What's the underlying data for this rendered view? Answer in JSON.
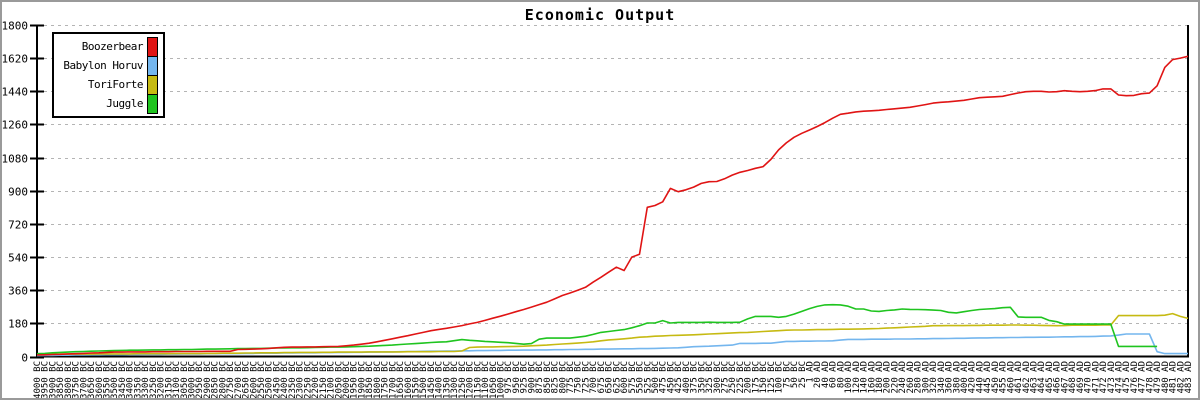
{
  "chart_data": {
    "type": "line",
    "title": "Economic Output",
    "xlabel": "",
    "ylabel": "",
    "grid": "horizontal-dashed",
    "legend_position": "top-left",
    "y_axis": {
      "min": 0,
      "max": 1800,
      "tick_step": 180,
      "tick_labels": [
        "0",
        "180",
        "360",
        "540",
        "720",
        "900",
        "1080",
        "1260",
        "1440",
        "1620",
        "1800"
      ]
    },
    "x_labels": [
      "4000 BC",
      "3950 BC",
      "3900 BC",
      "3850 BC",
      "3800 BC",
      "3750 BC",
      "3700 BC",
      "3650 BC",
      "3600 BC",
      "3550 BC",
      "3500 BC",
      "3450 BC",
      "3400 BC",
      "3350 BC",
      "3300 BC",
      "3250 BC",
      "3200 BC",
      "3150 BC",
      "3100 BC",
      "3050 BC",
      "3000 BC",
      "2950 BC",
      "2900 BC",
      "2850 BC",
      "2800 BC",
      "2750 BC",
      "2700 BC",
      "2650 BC",
      "2600 BC",
      "2550 BC",
      "2500 BC",
      "2450 BC",
      "2400 BC",
      "2350 BC",
      "2300 BC",
      "2250 BC",
      "2200 BC",
      "2150 BC",
      "2100 BC",
      "2050 BC",
      "2000 BC",
      "1950 BC",
      "1900 BC",
      "1850 BC",
      "1800 BC",
      "1750 BC",
      "1700 BC",
      "1650 BC",
      "1600 BC",
      "1550 BC",
      "1500 BC",
      "1450 BC",
      "1400 BC",
      "1350 BC",
      "1300 BC",
      "1250 BC",
      "1200 BC",
      "1150 BC",
      "1100 BC",
      "1050 BC",
      "1000 BC",
      "975 BC",
      "950 BC",
      "925 BC",
      "900 BC",
      "875 BC",
      "850 BC",
      "825 BC",
      "800 BC",
      "775 BC",
      "750 BC",
      "725 BC",
      "700 BC",
      "675 BC",
      "650 BC",
      "625 BC",
      "600 BC",
      "575 BC",
      "550 BC",
      "525 BC",
      "500 BC",
      "475 BC",
      "450 BC",
      "425 BC",
      "400 BC",
      "375 BC",
      "350 BC",
      "325 BC",
      "300 BC",
      "275 BC",
      "250 BC",
      "225 BC",
      "200 BC",
      "175 BC",
      "150 BC",
      "125 BC",
      "100 BC",
      "75 BC",
      "50 BC",
      "25 BC",
      "1 AD",
      "20 AD",
      "40 AD",
      "60 AD",
      "80 AD",
      "100 AD",
      "120 AD",
      "140 AD",
      "160 AD",
      "180 AD",
      "200 AD",
      "220 AD",
      "240 AD",
      "260 AD",
      "280 AD",
      "300 AD",
      "320 AD",
      "340 AD",
      "360 AD",
      "380 AD",
      "400 AD",
      "420 AD",
      "440 AD",
      "445 AD",
      "450 AD",
      "455 AD",
      "460 AD",
      "461 AD",
      "462 AD",
      "463 AD",
      "464 AD",
      "465 AD",
      "466 AD",
      "467 AD",
      "468 AD",
      "469 AD",
      "470 AD",
      "471 AD",
      "472 AD",
      "473 AD",
      "474 AD",
      "475 AD",
      "476 AD",
      "477 AD",
      "478 AD",
      "479 AD",
      "480 AD",
      "481 AD",
      "482 AD",
      "483 AD"
    ],
    "series": [
      {
        "name": "Babylon Horuv",
        "color": "#74b6ee",
        "values": [
          5,
          6,
          6,
          7,
          7,
          8,
          8,
          9,
          9,
          10,
          10,
          10,
          11,
          11,
          12,
          12,
          12,
          13,
          13,
          14,
          14,
          14,
          15,
          15,
          16,
          16,
          16,
          17,
          17,
          18,
          18,
          18,
          19,
          19,
          20,
          20,
          20,
          21,
          21,
          22,
          22,
          23,
          23,
          24,
          24,
          25,
          25,
          26,
          27,
          27,
          28,
          29,
          29,
          30,
          30,
          31,
          31,
          32,
          32,
          33,
          33,
          34,
          34,
          35,
          35,
          36,
          36,
          37,
          37,
          38,
          38,
          39,
          39,
          40,
          40,
          41,
          42,
          42,
          43,
          43,
          44,
          45,
          46,
          47,
          50,
          53,
          55,
          56,
          58,
          60,
          62,
          71,
          71,
          71,
          72,
          72,
          77,
          82,
          82,
          83,
          83,
          84,
          84,
          85,
          89,
          93,
          93,
          93,
          94,
          94,
          94,
          95,
          95,
          95,
          96,
          96,
          97,
          97,
          98,
          99,
          99,
          100,
          101,
          101,
          102,
          102,
          103,
          103,
          104,
          104,
          105,
          105,
          106,
          107,
          107,
          108,
          108,
          109,
          111,
          112,
          116,
          122,
          122,
          122,
          122,
          26,
          16,
          16,
          16,
          16
        ]
      },
      {
        "name": "ToriForte",
        "color": "#c6ba12",
        "values": [
          12,
          12,
          12,
          13,
          13,
          13,
          13,
          13,
          14,
          14,
          14,
          14,
          14,
          15,
          15,
          15,
          15,
          15,
          16,
          16,
          16,
          16,
          17,
          17,
          18,
          18,
          18,
          19,
          19,
          20,
          20,
          20,
          21,
          21,
          22,
          22,
          22,
          23,
          23,
          24,
          24,
          24,
          24,
          25,
          25,
          25,
          25,
          25,
          26,
          26,
          26,
          26,
          27,
          27,
          27,
          30,
          49,
          51,
          52,
          52,
          53,
          54,
          55,
          56,
          58,
          60,
          62,
          65,
          68,
          70,
          73,
          76,
          80,
          85,
          90,
          93,
          96,
          100,
          105,
          107,
          110,
          112,
          114,
          115,
          116,
          118,
          120,
          122,
          124,
          126,
          128,
          130,
          131,
          133,
          136,
          138,
          140,
          143,
          144,
          144,
          145,
          146,
          146,
          147,
          148,
          148,
          149,
          150,
          151,
          152,
          154,
          156,
          158,
          160,
          162,
          164,
          167,
          167,
          168,
          168,
          168,
          169,
          169,
          170,
          170,
          170,
          171,
          171,
          170,
          170,
          169,
          168,
          167,
          168,
          170,
          170,
          170,
          170,
          171,
          171,
          222,
          222,
          222,
          222,
          222,
          222,
          224,
          233,
          218,
          207
        ]
      },
      {
        "name": "Juggle",
        "color": "#1fc41f",
        "values": [
          15,
          17,
          20,
          22,
          24,
          26,
          27,
          29,
          30,
          31,
          32,
          33,
          34,
          34,
          35,
          36,
          36,
          37,
          37,
          38,
          38,
          39,
          40,
          40,
          41,
          42,
          43,
          43,
          44,
          44,
          45,
          46,
          46,
          47,
          47,
          48,
          49,
          50,
          51,
          51,
          52,
          53,
          55,
          56,
          58,
          60,
          62,
          65,
          68,
          70,
          73,
          76,
          78,
          80,
          86,
          92,
          88,
          85,
          82,
          80,
          77,
          75,
          71,
          67,
          70,
          94,
          100,
          100,
          100,
          100,
          105,
          110,
          120,
          131,
          136,
          141,
          146,
          156,
          167,
          182,
          182,
          195,
          182,
          185,
          185,
          185,
          185,
          186,
          185,
          185,
          185,
          186,
          204,
          218,
          218,
          218,
          213,
          218,
          230,
          245,
          260,
          272,
          280,
          281,
          280,
          273,
          258,
          258,
          247,
          245,
          250,
          253,
          258,
          256,
          255,
          254,
          252,
          250,
          240,
          237,
          243,
          250,
          255,
          258,
          260,
          265,
          267,
          215,
          213,
          213,
          213,
          196,
          189,
          176,
          176,
          176,
          176,
          176,
          176,
          176,
          55,
          55,
          55,
          55,
          55,
          55,
          null,
          null,
          null,
          null
        ]
      },
      {
        "name": "Boozerbear",
        "color": "#e01414",
        "values": [
          8,
          9,
          11,
          12,
          14,
          15,
          17,
          19,
          20,
          22,
          24,
          24,
          25,
          25,
          25,
          26,
          26,
          26,
          27,
          27,
          27,
          27,
          28,
          28,
          28,
          28,
          38,
          39,
          40,
          42,
          44,
          47,
          50,
          51,
          51,
          52,
          52,
          53,
          54,
          55,
          58,
          62,
          67,
          72,
          80,
          88,
          96,
          105,
          113,
          122,
          131,
          140,
          147,
          153,
          160,
          168,
          177,
          185,
          196,
          208,
          219,
          231,
          243,
          255,
          268,
          282,
          295,
          313,
          331,
          345,
          360,
          376,
          404,
          430,
          458,
          485,
          467,
          540,
          555,
          810,
          820,
          840,
          913,
          895,
          905,
          920,
          940,
          949,
          950,
          965,
          985,
          1000,
          1010,
          1022,
          1031,
          1070,
          1122,
          1160,
          1190,
          1212,
          1230,
          1249,
          1270,
          1294,
          1315,
          1321,
          1328,
          1332,
          1334,
          1337,
          1341,
          1345,
          1349,
          1353,
          1360,
          1368,
          1376,
          1380,
          1383,
          1387,
          1391,
          1398,
          1405,
          1408,
          1410,
          1413,
          1422,
          1431,
          1438,
          1440,
          1440,
          1436,
          1438,
          1443,
          1440,
          1438,
          1440,
          1444,
          1453,
          1453,
          1420,
          1416,
          1418,
          1427,
          1430,
          1470,
          1570,
          1612,
          1620,
          1630
        ]
      }
    ],
    "legend_order": [
      "Boozerbear",
      "Babylon Horuv",
      "ToriForte",
      "Juggle"
    ],
    "colors": {
      "Boozerbear": "#e01414",
      "Babylon Horuv": "#74b6ee",
      "ToriForte": "#c6ba12",
      "Juggle": "#1fc41f",
      "grid": "#b4b4b4",
      "axis": "#000000",
      "background": "#ffffff"
    }
  }
}
